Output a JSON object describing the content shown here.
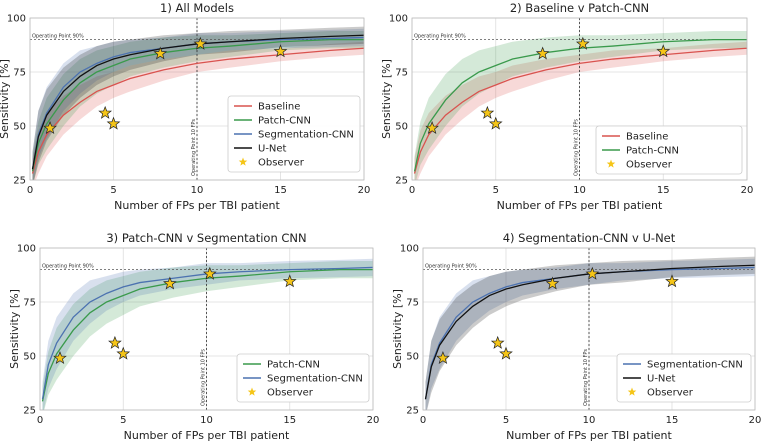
{
  "chart_data": [
    {
      "type": "line",
      "title": "1) All Models",
      "xlabel": "Number of FPs per TBI patient",
      "ylabel": "Sensitivity [%]",
      "xlim": [
        0,
        20
      ],
      "ylim": [
        25,
        100
      ],
      "xticks": [
        0,
        5,
        10,
        15,
        20
      ],
      "yticks": [
        25,
        50,
        75,
        100
      ],
      "grid": true,
      "legend_position": "bottom-right",
      "series": [
        {
          "name": "Baseline",
          "color": "#d9534f",
          "x": [
            0.15,
            0.5,
            1,
            2,
            3,
            4,
            5,
            6,
            8,
            10,
            12,
            15,
            18,
            20
          ],
          "y": [
            28,
            38,
            46,
            55,
            61,
            66,
            69,
            72,
            76,
            79,
            81,
            83,
            85,
            86
          ],
          "band": [
            7,
            10,
            10,
            9,
            8,
            7,
            6,
            6,
            5,
            4,
            4,
            3,
            3,
            3
          ]
        },
        {
          "name": "Patch-CNN",
          "color": "#3a9a4c",
          "x": [
            0.15,
            0.5,
            1,
            2,
            3,
            4,
            5,
            6,
            8,
            10,
            12,
            15,
            18,
            20
          ],
          "y": [
            29,
            42,
            51,
            62,
            70,
            75,
            78,
            81,
            84,
            86,
            87,
            89,
            90,
            90
          ],
          "band": [
            7,
            10,
            12,
            12,
            11,
            10,
            9,
            8,
            7,
            6,
            5,
            4,
            4,
            4
          ]
        },
        {
          "name": "Segmentation-CNN",
          "color": "#4c72b0",
          "x": [
            0.15,
            0.5,
            1,
            2,
            3,
            4,
            5,
            6,
            8,
            10,
            12,
            15,
            18,
            20
          ],
          "y": [
            30,
            46,
            56,
            68,
            75,
            79,
            82,
            84,
            86,
            88,
            89,
            90,
            90.5,
            91
          ],
          "band": [
            8,
            11,
            12,
            11,
            10,
            8,
            7,
            6,
            5,
            5,
            4,
            4,
            4,
            4
          ]
        },
        {
          "name": "U-Net",
          "color": "#111111",
          "x": [
            0.15,
            0.5,
            1,
            2,
            3,
            4,
            5,
            6,
            8,
            10,
            12,
            15,
            18,
            20
          ],
          "y": [
            30,
            45,
            55,
            66,
            73,
            78,
            81,
            83,
            86,
            88,
            89,
            90.5,
            91.5,
            92
          ],
          "band": [
            8,
            12,
            12,
            11,
            10,
            9,
            8,
            7,
            6,
            5,
            5,
            4,
            4,
            4
          ]
        }
      ],
      "observer": {
        "name": "Observer",
        "color": "#f5c518",
        "x": [
          1.2,
          4.5,
          5.0,
          7.8,
          10.2,
          15.0
        ],
        "y": [
          49,
          56,
          51,
          83.5,
          88,
          84.5
        ]
      },
      "annotations": {
        "operating_point_label": "Operating Point 90%",
        "operating_point_y": 90,
        "fp_line_label": "Operating Point 10 FPs",
        "fp_line_x": 10
      }
    },
    {
      "type": "line",
      "title": "2) Baseline v Patch-CNN",
      "xlabel": "Number of FPs per TBI patient",
      "ylabel": "Sensitivity [%]",
      "xlim": [
        0,
        20
      ],
      "ylim": [
        25,
        100
      ],
      "xticks": [
        0,
        5,
        10,
        15,
        20
      ],
      "yticks": [
        25,
        50,
        75,
        100
      ],
      "grid": true,
      "legend_position": "bottom-right",
      "series": [
        {
          "name": "Baseline",
          "color": "#d9534f",
          "x": [
            0.15,
            0.5,
            1,
            2,
            3,
            4,
            5,
            6,
            8,
            10,
            12,
            15,
            18,
            20
          ],
          "y": [
            28,
            38,
            46,
            55,
            61,
            66,
            69,
            72,
            76,
            79,
            81,
            83,
            85,
            86
          ],
          "band": [
            7,
            10,
            10,
            9,
            8,
            7,
            6,
            6,
            5,
            4,
            4,
            3,
            3,
            3
          ]
        },
        {
          "name": "Patch-CNN",
          "color": "#3a9a4c",
          "x": [
            0.15,
            0.5,
            1,
            2,
            3,
            4,
            5,
            6,
            8,
            10,
            12,
            15,
            18,
            20
          ],
          "y": [
            29,
            42,
            51,
            62,
            70,
            75,
            78,
            81,
            84,
            86,
            87,
            89,
            90,
            90
          ],
          "band": [
            7,
            10,
            12,
            12,
            11,
            10,
            9,
            8,
            7,
            6,
            5,
            4,
            4,
            4
          ]
        }
      ],
      "observer": {
        "name": "Observer",
        "color": "#f5c518",
        "x": [
          1.2,
          4.5,
          5.0,
          7.8,
          10.2,
          15.0
        ],
        "y": [
          49,
          56,
          51,
          83.5,
          88,
          84.5
        ]
      },
      "annotations": {
        "operating_point_label": "Operating Point 90%",
        "operating_point_y": 90,
        "fp_line_label": "Operating Point 10 FPs",
        "fp_line_x": 10
      }
    },
    {
      "type": "line",
      "title": "3) Patch-CNN v Segmentation CNN",
      "xlabel": "Number of FPs per TBI patient",
      "ylabel": "Sensitivity [%]",
      "xlim": [
        0,
        20
      ],
      "ylim": [
        25,
        100
      ],
      "xticks": [
        0,
        5,
        10,
        15,
        20
      ],
      "yticks": [
        25,
        50,
        75,
        100
      ],
      "grid": true,
      "legend_position": "bottom-right",
      "series": [
        {
          "name": "Patch-CNN",
          "color": "#3a9a4c",
          "x": [
            0.15,
            0.5,
            1,
            2,
            3,
            4,
            5,
            6,
            8,
            10,
            12,
            15,
            18,
            20
          ],
          "y": [
            29,
            42,
            51,
            62,
            70,
            75,
            78,
            81,
            84,
            86,
            87,
            89,
            90,
            90
          ],
          "band": [
            7,
            10,
            12,
            12,
            11,
            10,
            9,
            8,
            7,
            6,
            5,
            4,
            4,
            4
          ]
        },
        {
          "name": "Segmentation-CNN",
          "color": "#4c72b0",
          "x": [
            0.15,
            0.5,
            1,
            2,
            3,
            4,
            5,
            6,
            8,
            10,
            12,
            15,
            18,
            20
          ],
          "y": [
            30,
            46,
            56,
            68,
            75,
            79,
            82,
            84,
            86,
            88,
            89,
            90,
            90.5,
            91
          ],
          "band": [
            8,
            11,
            12,
            11,
            10,
            8,
            7,
            6,
            5,
            5,
            4,
            4,
            4,
            4
          ]
        }
      ],
      "observer": {
        "name": "Observer",
        "color": "#f5c518",
        "x": [
          1.2,
          4.5,
          5.0,
          7.8,
          10.2,
          15.0
        ],
        "y": [
          49,
          56,
          51,
          83.5,
          88,
          84.5
        ]
      },
      "annotations": {
        "operating_point_label": "Operating Point 90%",
        "operating_point_y": 90,
        "fp_line_label": "Operating Point 10 FPs",
        "fp_line_x": 10
      }
    },
    {
      "type": "line",
      "title": "4) Segmentation-CNN v U-Net",
      "xlabel": "Number of FPs per TBI patient",
      "ylabel": "Sensitivity [%]",
      "xlim": [
        0,
        20
      ],
      "ylim": [
        25,
        100
      ],
      "xticks": [
        0,
        5,
        10,
        15,
        20
      ],
      "yticks": [
        25,
        50,
        75,
        100
      ],
      "grid": true,
      "legend_position": "bottom-right",
      "series": [
        {
          "name": "Segmentation-CNN",
          "color": "#4c72b0",
          "x": [
            0.15,
            0.5,
            1,
            2,
            3,
            4,
            5,
            6,
            8,
            10,
            12,
            15,
            18,
            20
          ],
          "y": [
            30,
            46,
            56,
            68,
            75,
            79,
            82,
            84,
            86,
            88,
            89,
            90,
            90.5,
            91
          ],
          "band": [
            8,
            11,
            12,
            11,
            10,
            8,
            7,
            6,
            5,
            5,
            4,
            4,
            4,
            4
          ]
        },
        {
          "name": "U-Net",
          "color": "#111111",
          "x": [
            0.15,
            0.5,
            1,
            2,
            3,
            4,
            5,
            6,
            8,
            10,
            12,
            15,
            18,
            20
          ],
          "y": [
            30,
            45,
            55,
            66,
            73,
            78,
            81,
            83,
            86,
            88,
            89,
            90.5,
            91.5,
            92
          ],
          "band": [
            8,
            12,
            12,
            11,
            10,
            9,
            8,
            7,
            6,
            5,
            5,
            4,
            4,
            4
          ]
        }
      ],
      "observer": {
        "name": "Observer",
        "color": "#f5c518",
        "x": [
          1.2,
          4.5,
          5.0,
          7.8,
          10.2,
          15.0
        ],
        "y": [
          49,
          56,
          51,
          83.5,
          88,
          84.5
        ]
      },
      "annotations": {
        "operating_point_label": "Operating Point 90%",
        "operating_point_y": 90,
        "fp_line_label": "Operating Point 10 FPs",
        "fp_line_x": 10
      }
    }
  ]
}
